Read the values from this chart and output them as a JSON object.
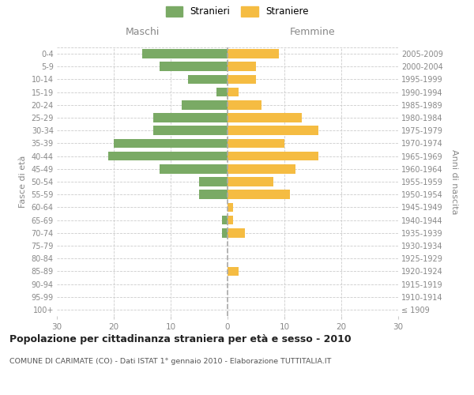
{
  "age_groups": [
    "100+",
    "95-99",
    "90-94",
    "85-89",
    "80-84",
    "75-79",
    "70-74",
    "65-69",
    "60-64",
    "55-59",
    "50-54",
    "45-49",
    "40-44",
    "35-39",
    "30-34",
    "25-29",
    "20-24",
    "15-19",
    "10-14",
    "5-9",
    "0-4"
  ],
  "birth_years": [
    "≤ 1909",
    "1910-1914",
    "1915-1919",
    "1920-1924",
    "1925-1929",
    "1930-1934",
    "1935-1939",
    "1940-1944",
    "1945-1949",
    "1950-1954",
    "1955-1959",
    "1960-1964",
    "1965-1969",
    "1970-1974",
    "1975-1979",
    "1980-1984",
    "1985-1989",
    "1990-1994",
    "1995-1999",
    "2000-2004",
    "2005-2009"
  ],
  "maschi": [
    0,
    0,
    0,
    0,
    0,
    0,
    1,
    1,
    0,
    5,
    5,
    12,
    21,
    20,
    13,
    13,
    8,
    2,
    7,
    12,
    15
  ],
  "femmine": [
    0,
    0,
    0,
    2,
    0,
    0,
    3,
    1,
    1,
    11,
    8,
    12,
    16,
    10,
    16,
    13,
    6,
    2,
    5,
    5,
    9
  ],
  "male_color": "#7aaa65",
  "female_color": "#f5bc42",
  "grid_color": "#cccccc",
  "center_line_color": "#aaaaaa",
  "bar_height": 0.72,
  "xlim": 30,
  "title": "Popolazione per cittadinanza straniera per età e sesso - 2010",
  "subtitle": "COMUNE DI CARIMATE (CO) - Dati ISTAT 1° gennaio 2010 - Elaborazione TUTTITALIA.IT",
  "xlabel_left": "Maschi",
  "xlabel_right": "Femmine",
  "ylabel_left": "Fasce di età",
  "ylabel_right": "Anni di nascita",
  "legend_male": "Stranieri",
  "legend_female": "Straniere",
  "background_color": "#ffffff",
  "tick_color": "#888888",
  "label_color": "#888888"
}
